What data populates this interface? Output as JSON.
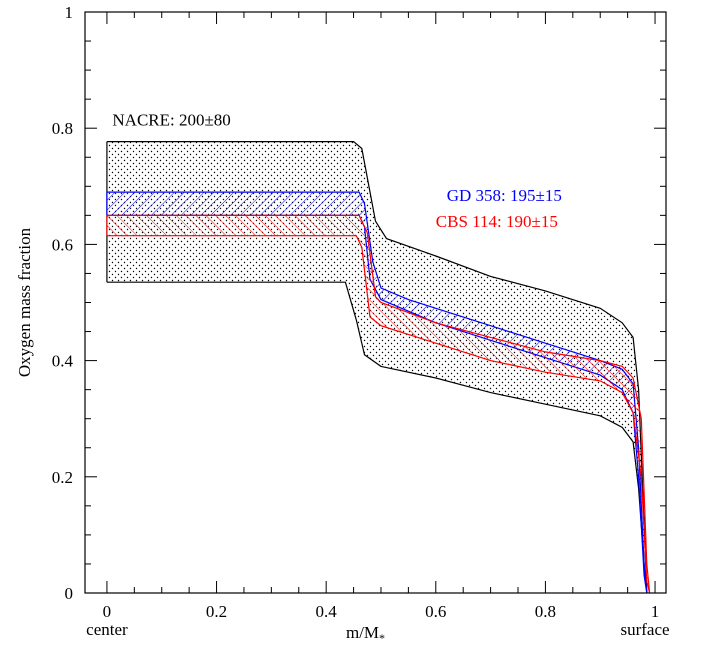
{
  "chart_data": {
    "type": "area",
    "title": "",
    "xlabel": "m/M",
    "xlabel_subscript": "*",
    "ylabel": "Oxygen mass fraction",
    "xlim": [
      -0.04,
      1.02
    ],
    "ylim": [
      0,
      1
    ],
    "x_ticks": [
      "0",
      "0.2",
      "0.4",
      "0.6",
      "0.8",
      "1"
    ],
    "x_tick_values": [
      0,
      0.2,
      0.4,
      0.6,
      0.8,
      1
    ],
    "y_ticks": [
      "0",
      "0.2",
      "0.4",
      "0.6",
      "0.8",
      "1"
    ],
    "y_tick_values": [
      0,
      0.2,
      0.4,
      0.6,
      0.8,
      1
    ],
    "x_end_labels": {
      "left": "center",
      "right": "surface"
    },
    "series": [
      {
        "name": "NACRE: 200±80",
        "color": "#000000",
        "pattern": "dots",
        "upper": [
          [
            0,
            0.777
          ],
          [
            0.45,
            0.777
          ],
          [
            0.465,
            0.765
          ],
          [
            0.49,
            0.64
          ],
          [
            0.51,
            0.61
          ],
          [
            0.6,
            0.58
          ],
          [
            0.7,
            0.545
          ],
          [
            0.8,
            0.52
          ],
          [
            0.9,
            0.49
          ],
          [
            0.94,
            0.465
          ],
          [
            0.96,
            0.44
          ],
          [
            0.97,
            0.35
          ],
          [
            0.98,
            0.12
          ],
          [
            0.985,
            0.0
          ]
        ],
        "lower": [
          [
            0,
            0.535
          ],
          [
            0.435,
            0.535
          ],
          [
            0.455,
            0.47
          ],
          [
            0.47,
            0.41
          ],
          [
            0.5,
            0.39
          ],
          [
            0.6,
            0.37
          ],
          [
            0.7,
            0.345
          ],
          [
            0.8,
            0.325
          ],
          [
            0.9,
            0.305
          ],
          [
            0.94,
            0.285
          ],
          [
            0.96,
            0.26
          ],
          [
            0.97,
            0.18
          ],
          [
            0.98,
            0.05
          ],
          [
            0.985,
            0.0
          ]
        ]
      },
      {
        "name": "GD 358: 195±15",
        "color": "#0000ff",
        "pattern": "hatch-forward",
        "upper": [
          [
            0,
            0.69
          ],
          [
            0.46,
            0.69
          ],
          [
            0.47,
            0.67
          ],
          [
            0.485,
            0.57
          ],
          [
            0.5,
            0.525
          ],
          [
            0.55,
            0.505
          ],
          [
            0.6,
            0.49
          ],
          [
            0.7,
            0.46
          ],
          [
            0.8,
            0.43
          ],
          [
            0.9,
            0.4
          ],
          [
            0.94,
            0.385
          ],
          [
            0.96,
            0.36
          ],
          [
            0.97,
            0.25
          ],
          [
            0.98,
            0.05
          ],
          [
            0.985,
            0.0
          ]
        ],
        "lower": [
          [
            0,
            0.65
          ],
          [
            0.46,
            0.65
          ],
          [
            0.47,
            0.63
          ],
          [
            0.48,
            0.54
          ],
          [
            0.5,
            0.505
          ],
          [
            0.55,
            0.485
          ],
          [
            0.6,
            0.465
          ],
          [
            0.7,
            0.435
          ],
          [
            0.8,
            0.405
          ],
          [
            0.9,
            0.375
          ],
          [
            0.94,
            0.35
          ],
          [
            0.96,
            0.31
          ],
          [
            0.97,
            0.2
          ],
          [
            0.98,
            0.03
          ],
          [
            0.985,
            0.0
          ]
        ]
      },
      {
        "name": "CBS 114: 190±15",
        "color": "#ff0000",
        "pattern": "hatch-back",
        "upper": [
          [
            0,
            0.65
          ],
          [
            0.46,
            0.65
          ],
          [
            0.475,
            0.62
          ],
          [
            0.49,
            0.51
          ],
          [
            0.5,
            0.5
          ],
          [
            0.6,
            0.465
          ],
          [
            0.7,
            0.44
          ],
          [
            0.8,
            0.415
          ],
          [
            0.9,
            0.4
          ],
          [
            0.94,
            0.39
          ],
          [
            0.96,
            0.37
          ],
          [
            0.975,
            0.3
          ],
          [
            0.985,
            0.05
          ],
          [
            0.99,
            0.0
          ]
        ],
        "lower": [
          [
            0,
            0.615
          ],
          [
            0.455,
            0.615
          ],
          [
            0.465,
            0.595
          ],
          [
            0.48,
            0.475
          ],
          [
            0.5,
            0.46
          ],
          [
            0.6,
            0.43
          ],
          [
            0.7,
            0.4
          ],
          [
            0.8,
            0.38
          ],
          [
            0.9,
            0.365
          ],
          [
            0.94,
            0.345
          ],
          [
            0.96,
            0.31
          ],
          [
            0.975,
            0.2
          ],
          [
            0.985,
            0.02
          ],
          [
            0.99,
            0.0
          ]
        ]
      }
    ],
    "annotations": [
      {
        "text": "NACRE: 200±80",
        "color": "#000000",
        "x": 0.01,
        "y": 0.805
      },
      {
        "text": "GD 358: 195±15",
        "color": "#0000ff",
        "x": 0.62,
        "y": 0.675
      },
      {
        "text": "CBS 114: 190±15",
        "color": "#ff0000",
        "x": 0.6,
        "y": 0.63
      }
    ]
  }
}
